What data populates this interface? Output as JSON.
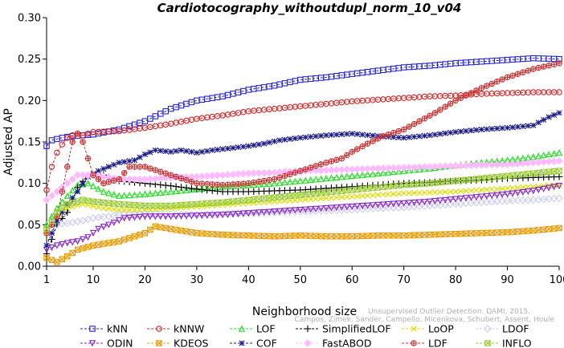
{
  "chart_data": {
    "type": "line",
    "title": "Cardiotocography_withoutdupl_norm_10_v04",
    "xlabel": "Neighborhood size",
    "ylabel": "Adjusted AP",
    "xlim": [
      1,
      100
    ],
    "ylim": [
      0,
      0.3
    ],
    "xticks": [
      1,
      10,
      20,
      30,
      40,
      50,
      60,
      70,
      80,
      90,
      100
    ],
    "yticks": [
      "0.00",
      "0.05",
      "0.10",
      "0.15",
      "0.20",
      "0.25",
      "0.30"
    ],
    "grid": false,
    "legend_position": "bottom",
    "watermark": [
      "Campos, Zimek, Sander, Campello, Micenkova, Schubert, Assent, Houle",
      "Unsupervised Outlier Detection. DAMI, 2015."
    ],
    "series": [
      {
        "name": "kNN",
        "color": "#2222dd",
        "marker": "square",
        "points": [
          [
            1,
            0.145
          ],
          [
            2,
            0.152
          ],
          [
            4,
            0.155
          ],
          [
            6,
            0.157
          ],
          [
            8,
            0.158
          ],
          [
            10,
            0.159
          ],
          [
            15,
            0.165
          ],
          [
            20,
            0.175
          ],
          [
            25,
            0.19
          ],
          [
            30,
            0.2
          ],
          [
            35,
            0.205
          ],
          [
            40,
            0.213
          ],
          [
            45,
            0.218
          ],
          [
            50,
            0.225
          ],
          [
            55,
            0.228
          ],
          [
            60,
            0.232
          ],
          [
            65,
            0.236
          ],
          [
            70,
            0.24
          ],
          [
            75,
            0.242
          ],
          [
            80,
            0.245
          ],
          [
            85,
            0.247
          ],
          [
            90,
            0.249
          ],
          [
            95,
            0.251
          ],
          [
            100,
            0.25
          ]
        ]
      },
      {
        "name": "kNNW",
        "color": "#dd2222",
        "marker": "circle",
        "points": [
          [
            1,
            0.092
          ],
          [
            2,
            0.12
          ],
          [
            3,
            0.137
          ],
          [
            4,
            0.147
          ],
          [
            5,
            0.155
          ],
          [
            6,
            0.158
          ],
          [
            7,
            0.16
          ],
          [
            8,
            0.158
          ],
          [
            10,
            0.162
          ],
          [
            15,
            0.163
          ],
          [
            20,
            0.167
          ],
          [
            25,
            0.172
          ],
          [
            30,
            0.178
          ],
          [
            35,
            0.182
          ],
          [
            40,
            0.187
          ],
          [
            45,
            0.19
          ],
          [
            50,
            0.193
          ],
          [
            55,
            0.196
          ],
          [
            60,
            0.199
          ],
          [
            65,
            0.201
          ],
          [
            70,
            0.203
          ],
          [
            75,
            0.205
          ],
          [
            80,
            0.206
          ],
          [
            85,
            0.208
          ],
          [
            90,
            0.209
          ],
          [
            95,
            0.21
          ],
          [
            100,
            0.21
          ]
        ]
      },
      {
        "name": "LOF",
        "color": "#22dd22",
        "marker": "triangle-up",
        "points": [
          [
            1,
            0.05
          ],
          [
            3,
            0.07
          ],
          [
            5,
            0.085
          ],
          [
            7,
            0.098
          ],
          [
            9,
            0.1
          ],
          [
            12,
            0.09
          ],
          [
            15,
            0.085
          ],
          [
            20,
            0.087
          ],
          [
            25,
            0.09
          ],
          [
            30,
            0.093
          ],
          [
            35,
            0.096
          ],
          [
            40,
            0.098
          ],
          [
            45,
            0.1
          ],
          [
            50,
            0.103
          ],
          [
            55,
            0.106
          ],
          [
            60,
            0.109
          ],
          [
            65,
            0.112
          ],
          [
            70,
            0.115
          ],
          [
            75,
            0.118
          ],
          [
            80,
            0.122
          ],
          [
            85,
            0.125
          ],
          [
            90,
            0.128
          ],
          [
            95,
            0.132
          ],
          [
            100,
            0.137
          ]
        ]
      },
      {
        "name": "SimplifiedLOF",
        "color": "#000000",
        "marker": "plus",
        "points": [
          [
            1,
            0.015
          ],
          [
            3,
            0.05
          ],
          [
            5,
            0.065
          ],
          [
            7,
            0.095
          ],
          [
            9,
            0.11
          ],
          [
            12,
            0.11
          ],
          [
            15,
            0.103
          ],
          [
            20,
            0.1
          ],
          [
            25,
            0.097
          ],
          [
            30,
            0.093
          ],
          [
            35,
            0.09
          ],
          [
            40,
            0.09
          ],
          [
            45,
            0.091
          ],
          [
            50,
            0.092
          ],
          [
            55,
            0.094
          ],
          [
            60,
            0.096
          ],
          [
            65,
            0.098
          ],
          [
            70,
            0.1
          ],
          [
            75,
            0.101
          ],
          [
            80,
            0.103
          ],
          [
            85,
            0.104
          ],
          [
            90,
            0.106
          ],
          [
            95,
            0.107
          ],
          [
            100,
            0.108
          ]
        ]
      },
      {
        "name": "LoOP",
        "color": "#dddd00",
        "marker": "x",
        "points": [
          [
            1,
            0.04
          ],
          [
            3,
            0.06
          ],
          [
            5,
            0.07
          ],
          [
            8,
            0.075
          ],
          [
            12,
            0.07
          ],
          [
            15,
            0.068
          ],
          [
            20,
            0.068
          ],
          [
            25,
            0.07
          ],
          [
            30,
            0.072
          ],
          [
            35,
            0.074
          ],
          [
            40,
            0.076
          ],
          [
            45,
            0.078
          ],
          [
            50,
            0.08
          ],
          [
            55,
            0.082
          ],
          [
            60,
            0.084
          ],
          [
            65,
            0.086
          ],
          [
            70,
            0.088
          ],
          [
            75,
            0.089
          ],
          [
            80,
            0.09
          ],
          [
            85,
            0.092
          ],
          [
            90,
            0.094
          ],
          [
            95,
            0.096
          ],
          [
            100,
            0.098
          ]
        ]
      },
      {
        "name": "LDOF",
        "color": "#ccccee",
        "marker": "diamond",
        "points": [
          [
            1,
            0.045
          ],
          [
            3,
            0.05
          ],
          [
            5,
            0.052
          ],
          [
            8,
            0.055
          ],
          [
            10,
            0.058
          ],
          [
            15,
            0.062
          ],
          [
            20,
            0.063
          ],
          [
            25,
            0.063
          ],
          [
            30,
            0.062
          ],
          [
            35,
            0.063
          ],
          [
            40,
            0.064
          ],
          [
            45,
            0.065
          ],
          [
            50,
            0.066
          ],
          [
            55,
            0.067
          ],
          [
            60,
            0.068
          ],
          [
            65,
            0.07
          ],
          [
            70,
            0.071
          ],
          [
            75,
            0.073
          ],
          [
            80,
            0.075
          ],
          [
            85,
            0.077
          ],
          [
            90,
            0.079
          ],
          [
            95,
            0.08
          ],
          [
            100,
            0.082
          ]
        ]
      },
      {
        "name": "ODIN",
        "color": "#8822cc",
        "marker": "triangle-down",
        "points": [
          [
            1,
            0.02
          ],
          [
            3,
            0.025
          ],
          [
            5,
            0.028
          ],
          [
            7,
            0.03
          ],
          [
            9,
            0.035
          ],
          [
            11,
            0.045
          ],
          [
            13,
            0.05
          ],
          [
            16,
            0.058
          ],
          [
            20,
            0.06
          ],
          [
            25,
            0.06
          ],
          [
            30,
            0.061
          ],
          [
            35,
            0.062
          ],
          [
            40,
            0.064
          ],
          [
            45,
            0.066
          ],
          [
            50,
            0.068
          ],
          [
            55,
            0.07
          ],
          [
            60,
            0.072
          ],
          [
            65,
            0.074
          ],
          [
            70,
            0.076
          ],
          [
            75,
            0.078
          ],
          [
            80,
            0.081
          ],
          [
            85,
            0.084
          ],
          [
            90,
            0.087
          ],
          [
            95,
            0.091
          ],
          [
            100,
            0.097
          ]
        ]
      },
      {
        "name": "KDEOS",
        "color": "#ee9900",
        "marker": "square-x",
        "points": [
          [
            1,
            0.01
          ],
          [
            3,
            0.005
          ],
          [
            5,
            0.012
          ],
          [
            7,
            0.02
          ],
          [
            10,
            0.025
          ],
          [
            15,
            0.03
          ],
          [
            20,
            0.04
          ],
          [
            22,
            0.048
          ],
          [
            25,
            0.045
          ],
          [
            30,
            0.04
          ],
          [
            35,
            0.038
          ],
          [
            40,
            0.037
          ],
          [
            45,
            0.036
          ],
          [
            50,
            0.037
          ],
          [
            55,
            0.036
          ],
          [
            60,
            0.036
          ],
          [
            65,
            0.037
          ],
          [
            70,
            0.037
          ],
          [
            75,
            0.038
          ],
          [
            80,
            0.039
          ],
          [
            85,
            0.04
          ],
          [
            90,
            0.041
          ],
          [
            95,
            0.043
          ],
          [
            100,
            0.046
          ]
        ]
      },
      {
        "name": "COF",
        "color": "#1a1a88",
        "marker": "asterisk",
        "points": [
          [
            1,
            0.025
          ],
          [
            3,
            0.055
          ],
          [
            5,
            0.075
          ],
          [
            7,
            0.09
          ],
          [
            9,
            0.108
          ],
          [
            11,
            0.115
          ],
          [
            13,
            0.12
          ],
          [
            15,
            0.125
          ],
          [
            18,
            0.128
          ],
          [
            20,
            0.135
          ],
          [
            22,
            0.14
          ],
          [
            25,
            0.138
          ],
          [
            27,
            0.14
          ],
          [
            30,
            0.137
          ],
          [
            33,
            0.14
          ],
          [
            36,
            0.142
          ],
          [
            40,
            0.145
          ],
          [
            43,
            0.148
          ],
          [
            46,
            0.152
          ],
          [
            50,
            0.155
          ],
          [
            55,
            0.158
          ],
          [
            60,
            0.16
          ],
          [
            65,
            0.157
          ],
          [
            70,
            0.155
          ],
          [
            75,
            0.158
          ],
          [
            80,
            0.162
          ],
          [
            85,
            0.165
          ],
          [
            90,
            0.167
          ],
          [
            95,
            0.17
          ],
          [
            98,
            0.18
          ],
          [
            100,
            0.185
          ]
        ]
      },
      {
        "name": "FastABOD",
        "color": "#ffbbff",
        "marker": "diamond-filled",
        "points": [
          [
            1,
            0.08
          ],
          [
            3,
            0.09
          ],
          [
            5,
            0.1
          ],
          [
            7,
            0.11
          ],
          [
            10,
            0.11
          ],
          [
            15,
            0.105
          ],
          [
            20,
            0.105
          ],
          [
            25,
            0.107
          ],
          [
            30,
            0.108
          ],
          [
            35,
            0.11
          ],
          [
            40,
            0.112
          ],
          [
            45,
            0.113
          ],
          [
            50,
            0.115
          ],
          [
            55,
            0.116
          ],
          [
            60,
            0.117
          ],
          [
            65,
            0.118
          ],
          [
            70,
            0.119
          ],
          [
            75,
            0.12
          ],
          [
            80,
            0.121
          ],
          [
            85,
            0.122
          ],
          [
            90,
            0.123
          ],
          [
            95,
            0.125
          ],
          [
            100,
            0.127
          ]
        ]
      },
      {
        "name": "LDF",
        "color": "#cc3333",
        "marker": "circle-plus",
        "points": [
          [
            1,
            0.04
          ],
          [
            3,
            0.06
          ],
          [
            5,
            0.12
          ],
          [
            6,
            0.15
          ],
          [
            7,
            0.16
          ],
          [
            8,
            0.15
          ],
          [
            10,
            0.11
          ],
          [
            12,
            0.1
          ],
          [
            15,
            0.105
          ],
          [
            17,
            0.12
          ],
          [
            20,
            0.12
          ],
          [
            25,
            0.11
          ],
          [
            30,
            0.1
          ],
          [
            35,
            0.098
          ],
          [
            40,
            0.1
          ],
          [
            45,
            0.105
          ],
          [
            50,
            0.115
          ],
          [
            55,
            0.125
          ],
          [
            58,
            0.13
          ],
          [
            60,
            0.138
          ],
          [
            63,
            0.148
          ],
          [
            66,
            0.157
          ],
          [
            70,
            0.165
          ],
          [
            73,
            0.175
          ],
          [
            76,
            0.185
          ],
          [
            80,
            0.2
          ],
          [
            85,
            0.215
          ],
          [
            90,
            0.228
          ],
          [
            95,
            0.238
          ],
          [
            100,
            0.245
          ]
        ]
      },
      {
        "name": "INFLO",
        "color": "#99cc33",
        "marker": "square-x",
        "points": [
          [
            1,
            0.045
          ],
          [
            3,
            0.065
          ],
          [
            5,
            0.075
          ],
          [
            8,
            0.08
          ],
          [
            10,
            0.078
          ],
          [
            15,
            0.075
          ],
          [
            20,
            0.073
          ],
          [
            25,
            0.073
          ],
          [
            30,
            0.075
          ],
          [
            35,
            0.077
          ],
          [
            40,
            0.08
          ],
          [
            45,
            0.083
          ],
          [
            50,
            0.086
          ],
          [
            55,
            0.089
          ],
          [
            60,
            0.092
          ],
          [
            65,
            0.095
          ],
          [
            70,
            0.098
          ],
          [
            75,
            0.1
          ],
          [
            80,
            0.103
          ],
          [
            85,
            0.106
          ],
          [
            90,
            0.109
          ],
          [
            95,
            0.112
          ],
          [
            100,
            0.115
          ]
        ]
      }
    ]
  }
}
